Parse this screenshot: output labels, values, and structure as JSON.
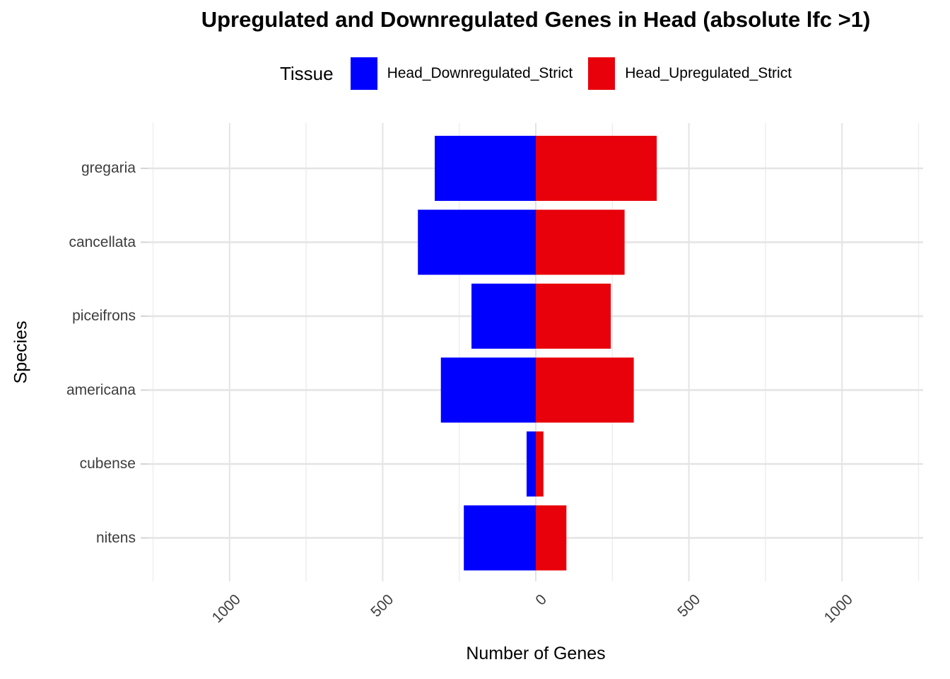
{
  "title": "Upregulated and Downregulated Genes in Head (absolute lfc >1)",
  "legend": {
    "title": "Tissue",
    "items": [
      {
        "label": "Head_Downregulated_Strict",
        "color": "#0000FF"
      },
      {
        "label": "Head_Upregulated_Strict",
        "color": "#E8000B"
      }
    ]
  },
  "chart_data": {
    "type": "bar",
    "orientation": "horizontal",
    "diverging": true,
    "title": "Upregulated and Downregulated Genes in Head (absolute lfc >1)",
    "xlabel": "Number of Genes",
    "ylabel": "Species",
    "categories": [
      "gregaria",
      "cancellata",
      "piceifrons",
      "americana",
      "cubense",
      "nitens"
    ],
    "series": [
      {
        "name": "Head_Downregulated_Strict",
        "color": "#0000FF",
        "direction": "negative",
        "values": [
          330,
          385,
          210,
          310,
          30,
          235
        ]
      },
      {
        "name": "Head_Upregulated_Strict",
        "color": "#E8000B",
        "direction": "positive",
        "values": [
          395,
          290,
          245,
          320,
          25,
          100
        ]
      }
    ],
    "x_axis": {
      "ticks": [
        -1000,
        -500,
        0,
        500,
        1000
      ],
      "tick_labels": [
        "1000",
        "500",
        "0",
        "500",
        "1000"
      ],
      "minor_ticks": [
        -1250,
        -750,
        -250,
        250,
        750,
        1250
      ],
      "xlim": [
        -1265,
        1265
      ]
    },
    "grid": true,
    "legend_position": "top"
  }
}
